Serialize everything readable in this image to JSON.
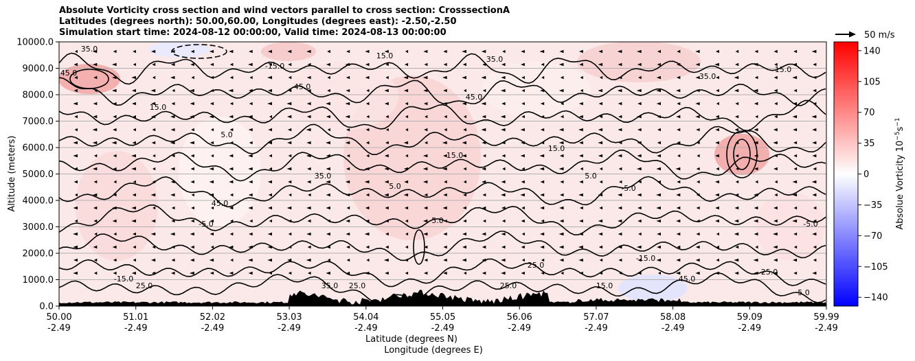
{
  "title_lines": [
    "Absolute Vorticity cross section and wind vectors parallel to cross section: CrosssectionA",
    "Latitudes (degrees north): 50.00,60.00, Longitudes (degrees east): -2.50,-2.50",
    "Simulation start time: 2024-08-12 00:00:00, Valid time: 2024-08-13 00:00:00"
  ],
  "chart_data": {
    "type": "heatmap",
    "xlabel": "Latitude (degrees N)",
    "xlabel2": "Longitude (degrees E)",
    "ylabel": "Altitude (meters)",
    "x_ticks": [
      {
        "lat": "50.00",
        "lon": "-2.49"
      },
      {
        "lat": "51.01",
        "lon": "-2.49"
      },
      {
        "lat": "52.02",
        "lon": "-2.49"
      },
      {
        "lat": "53.03",
        "lon": "-2.49"
      },
      {
        "lat": "54.04",
        "lon": "-2.49"
      },
      {
        "lat": "55.05",
        "lon": "-2.49"
      },
      {
        "lat": "56.06",
        "lon": "-2.49"
      },
      {
        "lat": "57.07",
        "lon": "-2.49"
      },
      {
        "lat": "58.08",
        "lon": "-2.49"
      },
      {
        "lat": "59.09",
        "lon": "-2.49"
      },
      {
        "lat": "59.99",
        "lon": "-2.49"
      }
    ],
    "xlim": [
      50.0,
      59.99
    ],
    "y_ticks": [
      "0.0",
      "1000.0",
      "2000.0",
      "3000.0",
      "4000.0",
      "5000.0",
      "6000.0",
      "7000.0",
      "8000.0",
      "9000.0",
      "10000.0"
    ],
    "ylim": [
      0,
      10000
    ],
    "grid": "horizontal",
    "colorbar": {
      "label": "Absolue Vorticity 10",
      "label_sup": "−5",
      "label_unit": "s",
      "label_unit_sup": "−1",
      "ticks": [
        "−140",
        "−105",
        "−70",
        "−35",
        "0",
        "35",
        "70",
        "105",
        "140"
      ],
      "range": [
        -150,
        150
      ],
      "colormap": "bwr",
      "colors": {
        "low": "#0000ff",
        "mid": "#ffffff",
        "high": "#ff0000"
      }
    },
    "quiver_key": {
      "label": "50 m/s",
      "value": 50
    },
    "contour_labels": [
      "45.0",
      "35.0",
      "25.0",
      "15.0",
      "5.0",
      "-5.0",
      "-15.0"
    ],
    "terrain_color": "#000000"
  }
}
